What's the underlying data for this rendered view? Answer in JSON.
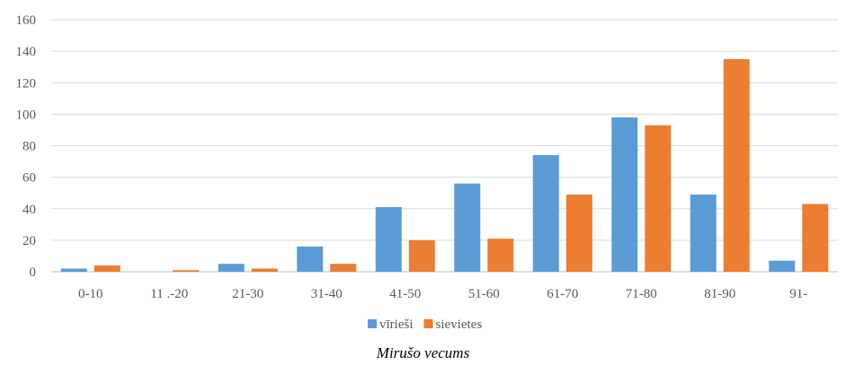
{
  "chart_data": {
    "type": "bar",
    "categories": [
      "0-10",
      "11 .-20",
      "21-30",
      "31-40",
      "41-50",
      "51-60",
      "61-70",
      "71-80",
      "81-90",
      "91-"
    ],
    "series": [
      {
        "name": "vīrieši",
        "values": [
          2,
          0,
          5,
          16,
          41,
          56,
          74,
          98,
          49,
          7
        ]
      },
      {
        "name": "sievietes",
        "values": [
          4,
          1,
          2,
          5,
          20,
          21,
          49,
          93,
          135,
          43
        ]
      }
    ],
    "colors": [
      "#5b9bd5",
      "#ed7d31"
    ],
    "yticks": [
      0,
      20,
      40,
      60,
      80,
      100,
      120,
      140,
      160
    ],
    "ylim": [
      0,
      160
    ],
    "grid": true,
    "legend_position": "bottom",
    "xlabel": "Mirušo vecums",
    "ylabel": ""
  }
}
